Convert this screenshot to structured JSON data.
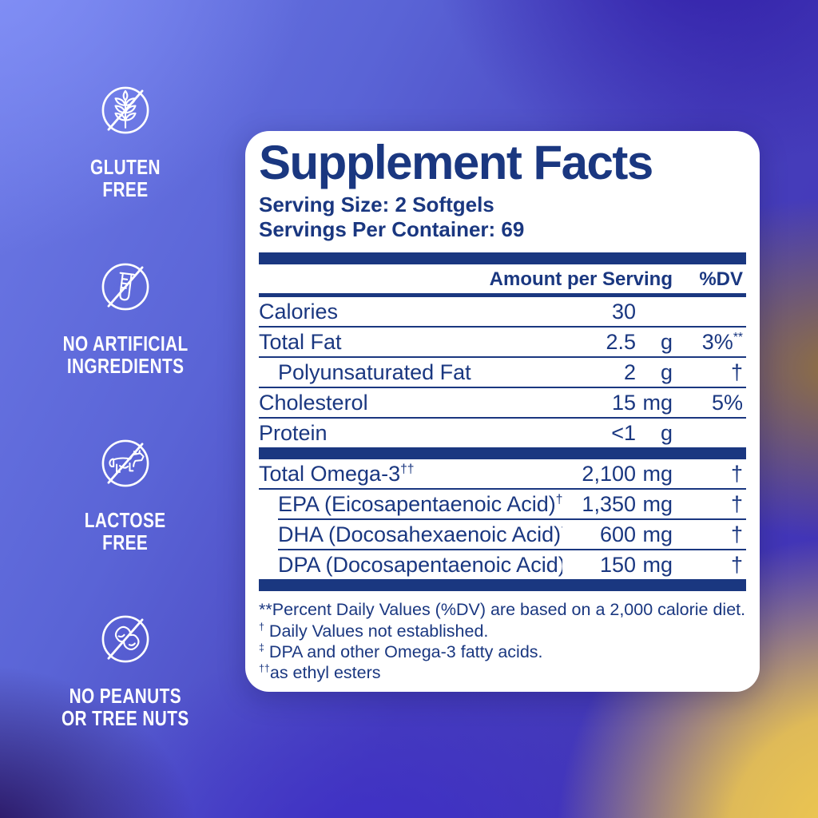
{
  "colors": {
    "navy": "#1A3780",
    "card_bg": "#FFFFFF",
    "badge_white": "#FFFFFF",
    "bg_periwinkle": "#8492F8",
    "bg_deep_violet": "#2F1AA5",
    "bg_indigo_dark": "#220A50",
    "bg_royal_blue": "#3C2AC8",
    "bg_gold": "#F0C94E",
    "bg_olive_gold": "#A07C28"
  },
  "badges": [
    {
      "icon": "no-gluten-icon",
      "lines": [
        "GLUTEN",
        "FREE"
      ]
    },
    {
      "icon": "no-artificial-ingredients-icon",
      "lines": [
        "NO ARTIFICIAL",
        "INGREDIENTS"
      ]
    },
    {
      "icon": "no-lactose-icon",
      "lines": [
        "LACTOSE",
        "FREE"
      ]
    },
    {
      "icon": "no-peanuts-icon",
      "lines": [
        "NO PEANUTS",
        "OR TREE NUTS"
      ]
    }
  ],
  "panel": {
    "title": "Supplement Facts",
    "serving_size": "Serving Size: 2 Softgels",
    "servings_per_container": "Servings Per Container: 69",
    "columns": {
      "amount": "Amount per Serving",
      "dv": "%DV"
    },
    "rows": [
      {
        "label": "Calories",
        "amount": "30",
        "unit": "",
        "dv": "",
        "indent": false,
        "sep": "full"
      },
      {
        "label": "Total Fat",
        "amount": "2.5",
        "unit": "g",
        "dv": "3%",
        "dv_sup": "**",
        "indent": false,
        "sep": "full"
      },
      {
        "label": "Polyunsaturated Fat",
        "amount": "2",
        "unit": "g",
        "dv": "†",
        "indent": true,
        "sep": "full"
      },
      {
        "label": "Cholesterol",
        "amount": "15",
        "unit": "mg",
        "dv": "5%",
        "indent": false,
        "sep": "full"
      },
      {
        "label": "Protein",
        "amount": "<1",
        "unit": "g",
        "dv": "",
        "indent": false,
        "sep": "bar"
      },
      {
        "label": "Total Omega-3",
        "label_sup": "††",
        "amount": "2,100",
        "unit": "mg",
        "dv": "†",
        "indent": false,
        "sep": "full"
      },
      {
        "label": "EPA (Eicosapentaenoic Acid)",
        "label_sup": "††",
        "amount": "1,350",
        "unit": "mg",
        "dv": "†",
        "indent": true,
        "sep": "indent"
      },
      {
        "label": "DHA (Docosahexaenoic Acid)",
        "label_sup": "††",
        "amount": "600",
        "unit": "mg",
        "dv": "†",
        "indent": true,
        "sep": "indent"
      },
      {
        "label": "DPA (Docosapentaenoic Acid)",
        "label_sup": "‡",
        "amount": "150",
        "unit": "mg",
        "dv": "†",
        "indent": true,
        "sep": "bar"
      }
    ],
    "footnotes": [
      {
        "marker": "**",
        "sup": false,
        "text": "Percent Daily Values (%DV) are based on a 2,000 calorie diet."
      },
      {
        "marker": "†",
        "sup": true,
        "text": " Daily Values not established."
      },
      {
        "marker": "‡",
        "sup": true,
        "text": " DPA and other Omega-3 fatty acids."
      },
      {
        "marker": "††",
        "sup": true,
        "text": "as ethyl esters"
      }
    ]
  }
}
